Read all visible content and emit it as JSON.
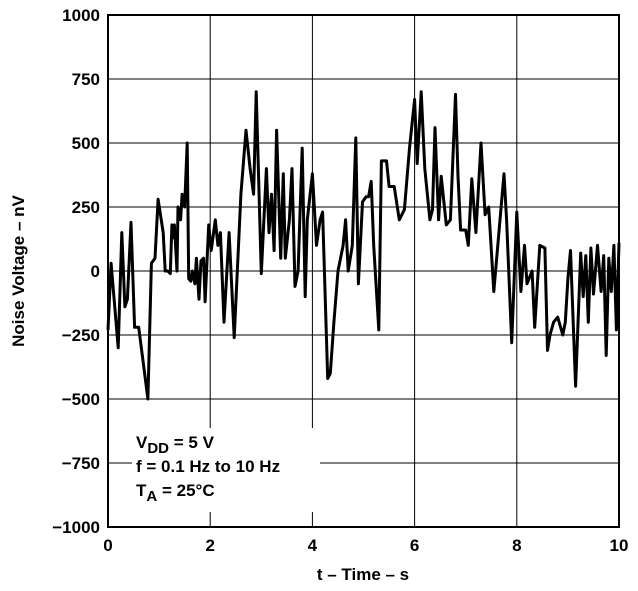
{
  "chart_data": {
    "type": "line",
    "y_label": "Noise Voltage – nV",
    "x_label": "t – Time – s",
    "annotations": [
      {
        "text": "V",
        "sub": "DD",
        "rest": " = 5 V"
      },
      {
        "text": "f = 0.1 Hz to 10 Hz"
      },
      {
        "text": "T",
        "sub": "A",
        "rest": " = 25°C"
      }
    ],
    "xlim": [
      0,
      10
    ],
    "xticks": [
      0,
      2,
      4,
      6,
      8,
      10
    ],
    "ylim": [
      -1000,
      1000
    ],
    "yticks": [
      {
        "value": -1000,
        "label": "−1000"
      },
      {
        "value": -750,
        "label": "−750"
      },
      {
        "value": -500,
        "label": "−500"
      },
      {
        "value": -250,
        "label": "−250"
      },
      0,
      250,
      500,
      750,
      1000
    ],
    "grid": true,
    "series": [
      {
        "color": "#000000",
        "x": [
          0,
          0.06,
          0.2,
          0.27,
          0.33,
          0.38,
          0.45,
          0.52,
          0.6,
          0.78,
          0.85,
          0.92,
          0.98,
          1.08,
          1.12,
          1.17,
          1.22,
          1.25,
          1.28,
          1.3,
          1.35,
          1.37,
          1.42,
          1.45,
          1.5,
          1.55,
          1.58,
          1.62,
          1.65,
          1.7,
          1.73,
          1.78,
          1.82,
          1.87,
          1.9,
          1.97,
          2.02,
          2.1,
          2.15,
          2.2,
          2.27,
          2.37,
          2.47,
          2.6,
          2.7,
          2.78,
          2.85,
          2.9,
          3.0,
          3.1,
          3.15,
          3.2,
          3.25,
          3.3,
          3.38,
          3.43,
          3.47,
          3.55,
          3.6,
          3.66,
          3.72,
          3.8,
          3.86,
          3.9,
          4.0,
          4.08,
          4.15,
          4.2,
          4.3,
          4.35,
          4.42,
          4.5,
          4.6,
          4.65,
          4.7,
          4.78,
          4.85,
          4.9,
          4.98,
          5.05,
          5.1,
          5.15,
          5.2,
          5.3,
          5.35,
          5.45,
          5.5,
          5.6,
          5.7,
          5.8,
          5.9,
          6.0,
          6.05,
          6.13,
          6.2,
          6.3,
          6.35,
          6.4,
          6.47,
          6.52,
          6.62,
          6.7,
          6.8,
          6.85,
          6.9,
          7.0,
          7.05,
          7.12,
          7.2,
          7.3,
          7.38,
          7.45,
          7.55,
          7.65,
          7.75,
          7.8,
          7.9,
          8.0,
          8.08,
          8.15,
          8.2,
          8.3,
          8.35,
          8.45,
          8.55,
          8.6,
          8.65,
          8.72,
          8.8,
          8.9,
          8.95,
          9.0,
          9.05,
          9.15,
          9.25,
          9.3,
          9.35,
          9.4,
          9.45,
          9.5,
          9.58,
          9.65,
          9.7,
          9.75,
          9.8,
          9.85,
          9.9,
          9.95,
          10.0
        ],
        "values": [
          -230,
          30,
          -300,
          150,
          -140,
          -110,
          190,
          -220,
          -220,
          -500,
          30,
          50,
          280,
          150,
          0,
          0,
          -10,
          180,
          130,
          180,
          0,
          250,
          200,
          300,
          250,
          500,
          -30,
          -40,
          0,
          -50,
          50,
          -110,
          40,
          50,
          -120,
          180,
          80,
          200,
          100,
          150,
          -200,
          150,
          -260,
          300,
          550,
          400,
          300,
          700,
          -10,
          400,
          150,
          300,
          80,
          550,
          50,
          380,
          50,
          200,
          400,
          -60,
          0,
          480,
          -100,
          200,
          380,
          100,
          200,
          230,
          -420,
          -400,
          -200,
          0,
          100,
          200,
          0,
          100,
          520,
          -50,
          270,
          290,
          290,
          350,
          100,
          -230,
          430,
          430,
          330,
          330,
          200,
          240,
          480,
          670,
          420,
          700,
          400,
          200,
          240,
          560,
          200,
          370,
          180,
          200,
          690,
          370,
          160,
          160,
          100,
          360,
          150,
          500,
          220,
          250,
          -80,
          150,
          380,
          200,
          -280,
          230,
          -80,
          100,
          -50,
          0,
          -220,
          100,
          90,
          -310,
          -250,
          -200,
          -180,
          -250,
          -200,
          -30,
          80,
          -450,
          70,
          -100,
          60,
          -200,
          90,
          -90,
          100,
          -80,
          60,
          -330,
          50,
          -80,
          100,
          -230,
          110
        ]
      }
    ]
  }
}
